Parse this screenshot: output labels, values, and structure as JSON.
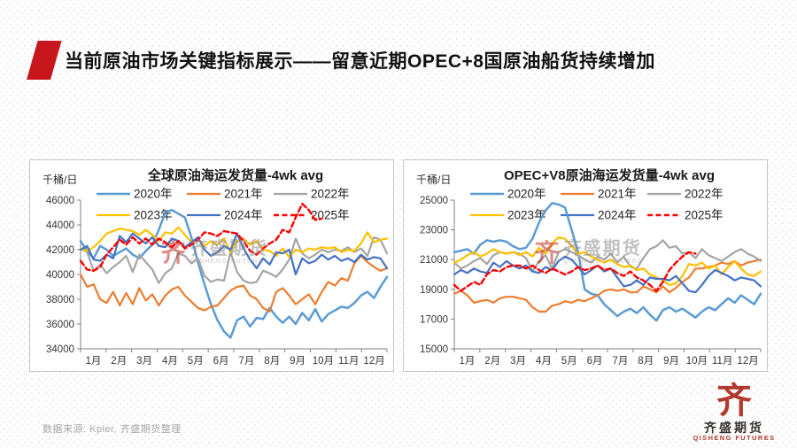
{
  "header": {
    "title": "当前原油市场关键指标展示——留意近期OPEC+8国原油船货持续增加"
  },
  "footer": {
    "source": "数据来源: Kpler, 齐盛期货整理"
  },
  "logo": {
    "seal_char": "齐",
    "name_cn": "齐盛期货",
    "name_en": "QISHENG FUTURES"
  },
  "watermark": {
    "seal_char": "齐",
    "cn": "齐盛期货",
    "en": "QISHENG FUTURES"
  },
  "colors": {
    "accent_red": "#c8161d",
    "y2020": "#5B9BD5",
    "y2021": "#ED7D31",
    "y2022": "#A5A5A5",
    "y2023": "#FFC000",
    "y2024": "#4472C4",
    "y2025": "#FF0000",
    "axis": "#808080"
  },
  "chart_data": [
    {
      "type": "line",
      "title": "全球原油海运发货量-4wk avg",
      "unit_label": "千桶/日",
      "ylim": [
        34000,
        46000
      ],
      "ytick_step": 2000,
      "points_per_year": 48,
      "x_categories": [
        "1月",
        "2月",
        "3月",
        "4月",
        "5月",
        "6月",
        "7月",
        "8月",
        "9月",
        "10月",
        "11月",
        "12月"
      ],
      "legend_position": "top-inside",
      "grid": false,
      "series": [
        {
          "name": "2020年",
          "color": "#5B9BD5",
          "dash": false,
          "width": 2.5,
          "values": [
            42700,
            41900,
            41300,
            42300,
            42000,
            41500,
            41800,
            42100,
            41600,
            41300,
            41900,
            42400,
            43600,
            45000,
            45200,
            44900,
            44600,
            43000,
            41000,
            39200,
            37600,
            36300,
            35400,
            34900,
            36300,
            36600,
            35800,
            36500,
            36400,
            37300,
            36600,
            36100,
            36600,
            36000,
            36900,
            36300,
            37200,
            36200,
            36800,
            37100,
            37400,
            37300,
            37700,
            38300,
            38600,
            38100,
            39000,
            39800
          ]
        },
        {
          "name": "2021年",
          "color": "#ED7D31",
          "dash": false,
          "width": 2.2,
          "values": [
            40000,
            39000,
            39200,
            38000,
            37700,
            38600,
            37500,
            38500,
            37600,
            38900,
            37900,
            38400,
            37500,
            38300,
            38800,
            39000,
            38300,
            37800,
            37300,
            37100,
            37400,
            37500,
            38100,
            38700,
            39000,
            39100,
            38300,
            38000,
            37300,
            37000,
            38600,
            38900,
            38300,
            37600,
            38000,
            38400,
            37600,
            38600,
            39400,
            39100,
            39700,
            39500,
            40900,
            41500,
            41000,
            40600,
            40300,
            40500
          ]
        },
        {
          "name": "2022年",
          "color": "#A5A5A5",
          "dash": false,
          "width": 2.2,
          "values": [
            42100,
            41800,
            40300,
            40800,
            40100,
            40600,
            41000,
            41500,
            40200,
            41600,
            41000,
            40400,
            39300,
            40100,
            40500,
            41700,
            41500,
            40900,
            41300,
            39900,
            39400,
            39600,
            39500,
            41800,
            40200,
            39500,
            39300,
            39400,
            40300,
            40100,
            39800,
            40400,
            41200,
            42900,
            41700,
            41300,
            41600,
            42000,
            41800,
            42000,
            41900,
            42200,
            41800,
            42100,
            41500,
            43000,
            42800,
            41700
          ]
        },
        {
          "name": "2023年",
          "color": "#FFC000",
          "dash": false,
          "width": 2.2,
          "values": [
            42100,
            41900,
            42200,
            42700,
            43300,
            43500,
            43700,
            43600,
            43500,
            43200,
            43600,
            43200,
            42700,
            43400,
            43300,
            43800,
            43200,
            42600,
            42900,
            42300,
            42700,
            42400,
            42900,
            41800,
            42700,
            42900,
            42400,
            42700,
            42000,
            41900,
            41500,
            42100,
            41400,
            42000,
            41800,
            42100,
            42000,
            42200,
            42100,
            42200,
            41800,
            42000,
            41900,
            42500,
            43400,
            42600,
            42800,
            42900
          ]
        },
        {
          "name": "2024年",
          "color": "#4472C4",
          "dash": false,
          "width": 2.2,
          "values": [
            42000,
            42300,
            41200,
            41100,
            41600,
            41300,
            43100,
            42600,
            43300,
            42900,
            42500,
            43000,
            42300,
            42200,
            42900,
            42700,
            42200,
            42600,
            43000,
            42000,
            41500,
            41800,
            42300,
            42000,
            43300,
            42100,
            41200,
            40500,
            41300,
            40800,
            41800,
            41700,
            42000,
            40000,
            41300,
            40900,
            41100,
            41600,
            41200,
            41500,
            41100,
            41300,
            41000,
            41600,
            41200,
            41400,
            41300,
            40500
          ]
        },
        {
          "name": "2025年",
          "color": "#FF0000",
          "dash": true,
          "width": 2.4,
          "values": [
            41100,
            40400,
            40300,
            40600,
            41600,
            42200,
            42800,
            42400,
            43000,
            42500,
            42900,
            42400,
            42900,
            42600,
            42200,
            42700,
            42100,
            42400,
            42800,
            43400,
            43300,
            43100,
            43500,
            43400,
            43300,
            42700,
            41900,
            41600,
            42100,
            42500,
            42800,
            43600,
            43400,
            44600,
            45700,
            45200,
            44400,
            44500
          ]
        }
      ]
    },
    {
      "type": "line",
      "title": "OPEC+V8原油海运发货量-4wk avg",
      "unit_label": "千桶/日",
      "ylim": [
        15000,
        25000
      ],
      "ytick_step": 2000,
      "points_per_year": 48,
      "x_categories": [
        "1月",
        "2月",
        "3月",
        "4月",
        "5月",
        "6月",
        "7月",
        "8月",
        "9月",
        "10月",
        "11月",
        "12月"
      ],
      "legend_position": "top-inside",
      "grid": false,
      "series": [
        {
          "name": "2020年",
          "color": "#5B9BD5",
          "dash": false,
          "width": 2.5,
          "values": [
            21500,
            21600,
            21700,
            21400,
            22000,
            22300,
            22200,
            22300,
            22200,
            21900,
            21700,
            21800,
            22400,
            23500,
            24300,
            24800,
            24700,
            24500,
            23000,
            21500,
            19000,
            18700,
            18600,
            18000,
            17600,
            17200,
            17500,
            17700,
            17400,
            17800,
            17300,
            16900,
            17600,
            17800,
            17500,
            17700,
            17400,
            17100,
            17500,
            17800,
            17600,
            18000,
            18400,
            18100,
            18600,
            18300,
            18000,
            18700
          ]
        },
        {
          "name": "2021年",
          "color": "#ED7D31",
          "dash": false,
          "width": 2.2,
          "values": [
            18700,
            18900,
            18600,
            18100,
            18200,
            18300,
            18100,
            18400,
            18500,
            18500,
            18400,
            18300,
            17800,
            17500,
            17500,
            17900,
            18000,
            18200,
            18100,
            18300,
            18200,
            18400,
            18600,
            18900,
            19000,
            18900,
            19000,
            18800,
            18800,
            19200,
            19000,
            18800,
            19200,
            18800,
            19100,
            19500,
            19800,
            20400,
            20400,
            20500,
            20600,
            20800,
            20700,
            20900,
            20600,
            20800,
            20900,
            21000
          ]
        },
        {
          "name": "2022年",
          "color": "#A5A5A5",
          "dash": false,
          "width": 2.2,
          "values": [
            20800,
            20400,
            20600,
            20900,
            21100,
            20700,
            21300,
            21500,
            21400,
            21500,
            21400,
            21100,
            20200,
            20900,
            21300,
            20400,
            21500,
            21700,
            21500,
            21300,
            21000,
            20800,
            21200,
            21000,
            21400,
            20800,
            21200,
            20500,
            20400,
            21100,
            21700,
            21900,
            22300,
            21800,
            21900,
            21400,
            21500,
            21100,
            21700,
            21300,
            21100,
            20900,
            21200,
            21500,
            21700,
            21400,
            21200,
            20900
          ]
        },
        {
          "name": "2023年",
          "color": "#FFC000",
          "dash": false,
          "width": 2.2,
          "values": [
            20800,
            21000,
            21300,
            21500,
            21200,
            21400,
            21700,
            21500,
            21400,
            21500,
            21300,
            21500,
            21200,
            21800,
            21400,
            22100,
            22500,
            22400,
            21900,
            21400,
            21500,
            21200,
            21000,
            20800,
            21000,
            20700,
            20500,
            20600,
            20300,
            20400,
            20000,
            19800,
            19600,
            19300,
            19400,
            19900,
            20700,
            20600,
            20800,
            20400,
            20600,
            20000,
            20500,
            20900,
            20400,
            20000,
            19900,
            20200
          ]
        },
        {
          "name": "2024年",
          "color": "#4472C4",
          "dash": false,
          "width": 2.2,
          "values": [
            20000,
            20300,
            20100,
            20400,
            20200,
            20100,
            20800,
            20500,
            20900,
            20600,
            20400,
            20600,
            20200,
            20100,
            20500,
            20300,
            20900,
            21200,
            21000,
            20500,
            20000,
            20300,
            20600,
            20200,
            20400,
            19800,
            19200,
            19300,
            19600,
            19300,
            19800,
            19700,
            19700,
            19600,
            19900,
            19400,
            18900,
            18800,
            19300,
            19900,
            20300,
            20100,
            19900,
            19600,
            19800,
            19700,
            19600,
            19200
          ]
        },
        {
          "name": "2025年",
          "color": "#FF0000",
          "dash": true,
          "width": 2.4,
          "values": [
            19300,
            18900,
            19200,
            19500,
            19300,
            20000,
            20300,
            20200,
            20500,
            20600,
            20600,
            20400,
            20600,
            20300,
            20100,
            20400,
            20200,
            20000,
            20200,
            20500,
            20300,
            20400,
            20600,
            20300,
            20400,
            20100,
            19900,
            20200,
            19800,
            19600,
            19300,
            18900,
            19500,
            20300,
            20800,
            21200,
            21500,
            21400
          ]
        }
      ]
    }
  ]
}
